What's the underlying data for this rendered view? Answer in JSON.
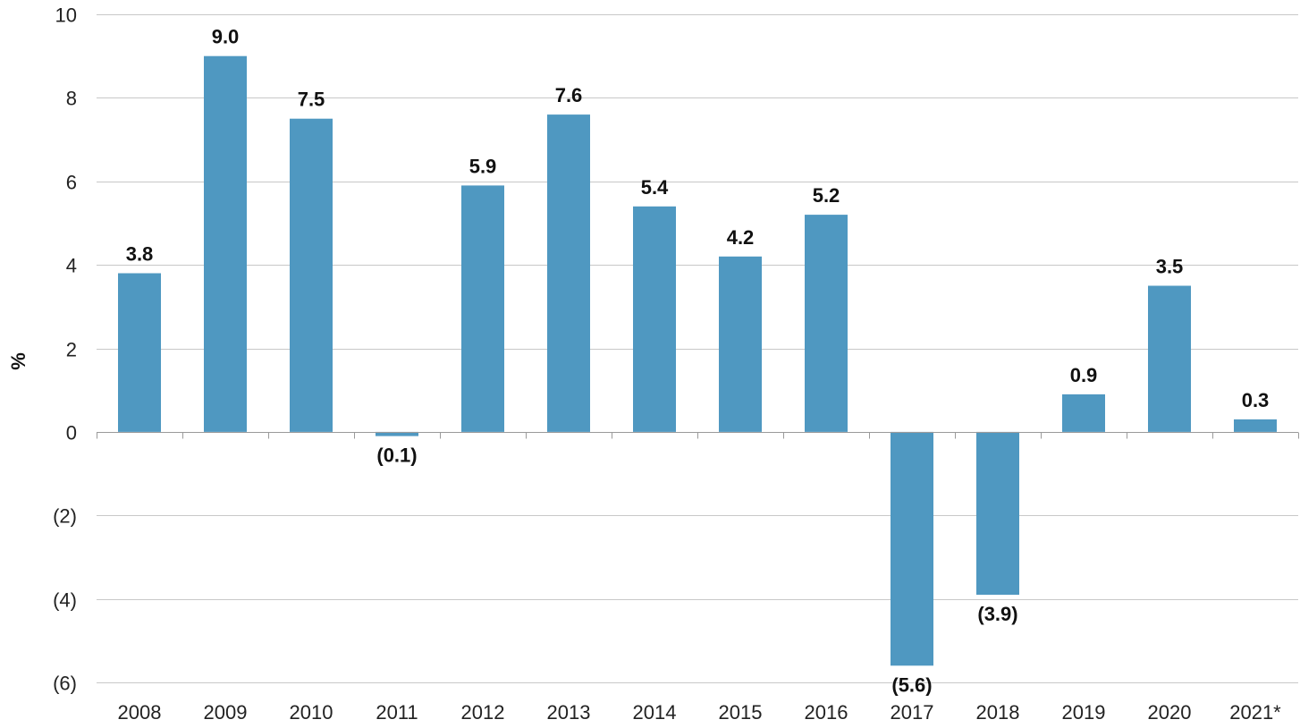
{
  "chart_data": {
    "type": "bar",
    "categories": [
      "2008",
      "2009",
      "2010",
      "2011",
      "2012",
      "2013",
      "2014",
      "2015",
      "2016",
      "2017",
      "2018",
      "2019",
      "2020",
      "2021*"
    ],
    "values": [
      3.8,
      9.0,
      7.5,
      -0.1,
      5.9,
      7.6,
      5.4,
      4.2,
      5.2,
      -5.6,
      -3.9,
      0.9,
      3.5,
      0.3
    ],
    "value_labels": [
      "3.8",
      "9.0",
      "7.5",
      "(0.1)",
      "5.9",
      "7.6",
      "5.4",
      "4.2",
      "5.2",
      "(5.6)",
      "(3.9)",
      "0.9",
      "3.5",
      "0.3"
    ],
    "ylabel": "%",
    "ylim": [
      -6,
      10
    ],
    "yticks": [
      10,
      8,
      6,
      4,
      2,
      0,
      -2,
      -4,
      -6
    ],
    "ytick_labels": [
      "10",
      "8",
      "6",
      "4",
      "2",
      "0",
      "(2)",
      "(4)",
      "(6)"
    ],
    "grid": true,
    "legend": "none",
    "bar_color": "#4f98c1"
  }
}
